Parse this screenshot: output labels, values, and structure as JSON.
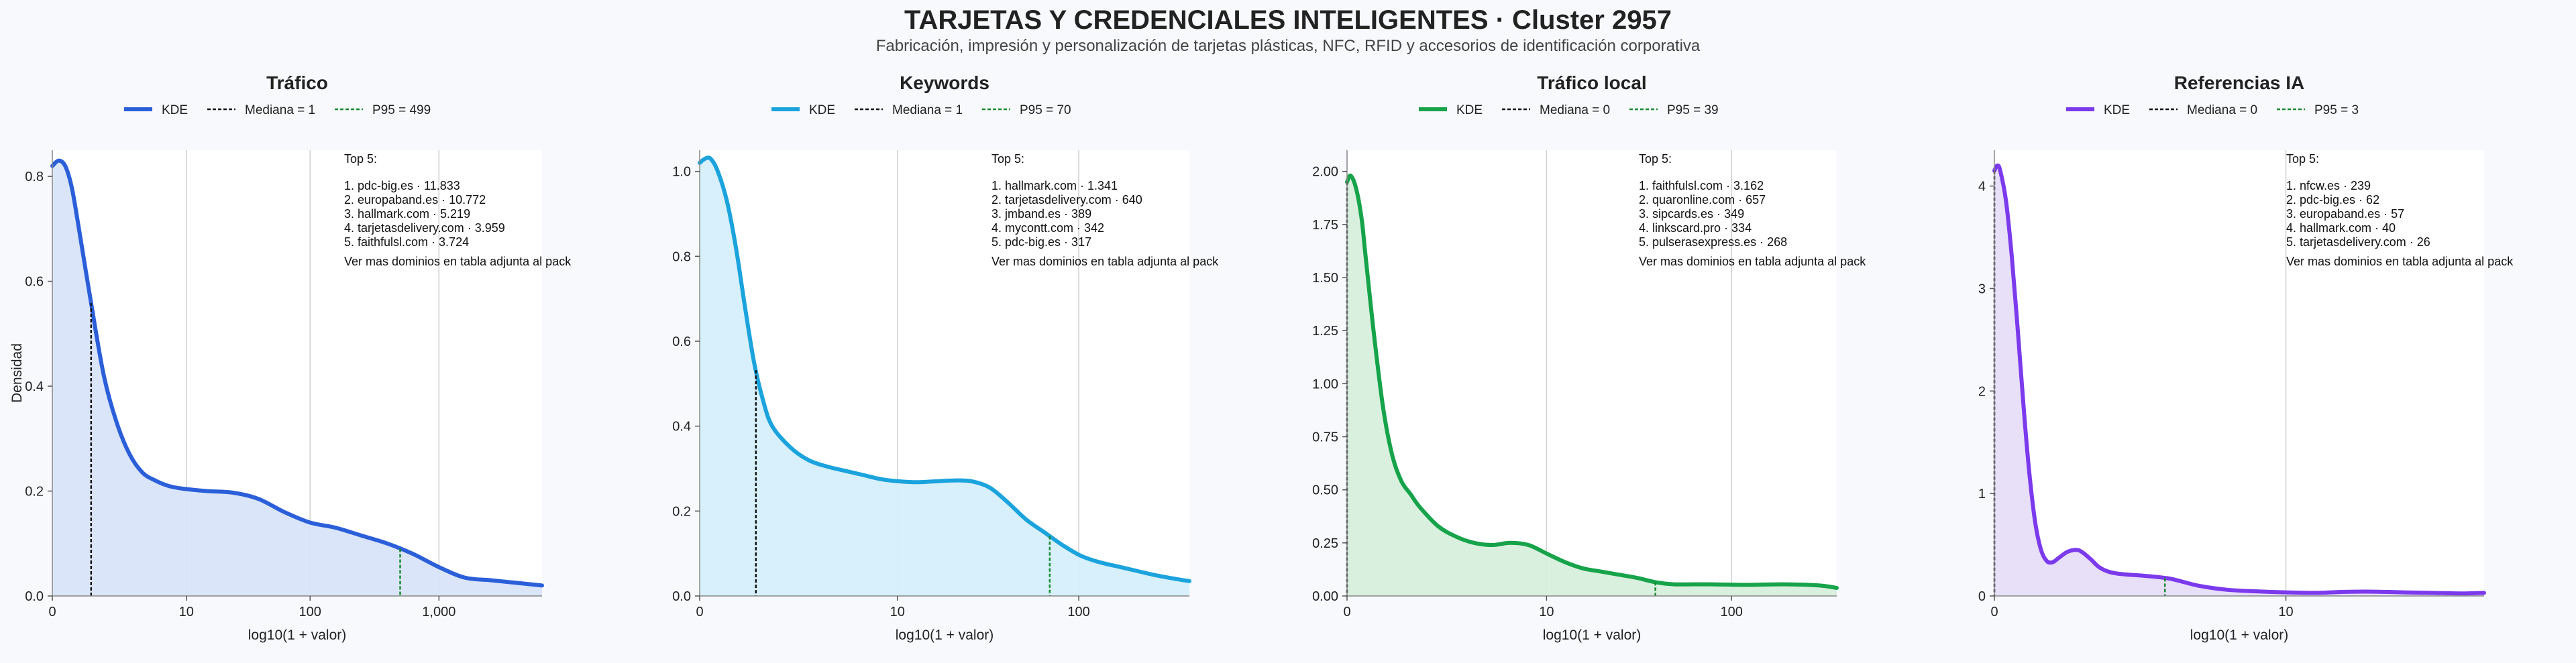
{
  "header": {
    "title": "TARJETAS Y CREDENCIALES INTELIGENTES · Cluster 2957",
    "subtitle": "Fabricación, impresión y personalización de tarjetas plásticas, NFC, RFID y accesorios de identificación corporativa"
  },
  "chart_data": [
    {
      "type": "area",
      "title": "Tráfico",
      "xlabel": "log10(1 + valor)",
      "ylabel": "Densidad",
      "color": "#2b5fd9",
      "fill": "#d7e2f8",
      "xlim": [
        0,
        3.8
      ],
      "ylim": [
        0,
        0.85
      ],
      "xticks": [
        {
          "v": 0,
          "label": "0"
        },
        {
          "v": 1.04,
          "label": "10"
        },
        {
          "v": 2.0,
          "label": "100"
        },
        {
          "v": 3.0,
          "label": "1,000"
        }
      ],
      "yticks": [
        {
          "v": 0.0,
          "label": "0.0"
        },
        {
          "v": 0.2,
          "label": "0.2"
        },
        {
          "v": 0.4,
          "label": "0.4"
        },
        {
          "v": 0.6,
          "label": "0.6"
        },
        {
          "v": 0.8,
          "label": "0.8"
        }
      ],
      "legend": {
        "kde": "KDE",
        "median": "Mediana = 1",
        "p95": "P95 = 499"
      },
      "median_x": 0.301,
      "p95_x": 2.699,
      "series": [
        {
          "name": "KDE",
          "x": [
            0,
            0.05,
            0.1,
            0.15,
            0.2,
            0.3,
            0.4,
            0.5,
            0.6,
            0.7,
            0.8,
            0.9,
            1.0,
            1.2,
            1.4,
            1.6,
            1.8,
            2.0,
            2.2,
            2.4,
            2.6,
            2.8,
            3.0,
            3.2,
            3.4,
            3.6,
            3.8
          ],
          "y": [
            0.82,
            0.83,
            0.82,
            0.78,
            0.71,
            0.56,
            0.42,
            0.33,
            0.27,
            0.235,
            0.22,
            0.21,
            0.205,
            0.2,
            0.197,
            0.185,
            0.16,
            0.14,
            0.13,
            0.115,
            0.1,
            0.08,
            0.055,
            0.035,
            0.03,
            0.025,
            0.02
          ]
        }
      ],
      "annotation": {
        "heading": "Top 5:",
        "items": [
          "1. pdc-big.es · 11.833",
          "2. europaband.es · 10.772",
          "3. hallmark.com · 5.219",
          "4. tarjetasdelivery.com · 3.959",
          "5. faithfulsl.com · 3.724"
        ],
        "footer": "Ver mas dominios en tabla adjunta al pack"
      }
    },
    {
      "type": "area",
      "title": "Keywords",
      "xlabel": "log10(1 + valor)",
      "ylabel": "",
      "color": "#1ba3dd",
      "fill": "#d3eefb",
      "xlim": [
        0,
        2.7
      ],
      "ylim": [
        0,
        1.05
      ],
      "xticks": [
        {
          "v": 0,
          "label": "0"
        },
        {
          "v": 1.09,
          "label": "10"
        },
        {
          "v": 2.09,
          "label": "100"
        }
      ],
      "yticks": [
        {
          "v": 0.0,
          "label": "0.0"
        },
        {
          "v": 0.2,
          "label": "0.2"
        },
        {
          "v": 0.4,
          "label": "0.4"
        },
        {
          "v": 0.6,
          "label": "0.6"
        },
        {
          "v": 0.8,
          "label": "0.8"
        },
        {
          "v": 1.0,
          "label": "1.0"
        }
      ],
      "legend": {
        "kde": "KDE",
        "median": "Mediana = 1",
        "p95": "P95 = 70"
      },
      "median_x": 0.31,
      "p95_x": 1.93,
      "series": [
        {
          "name": "KDE",
          "x": [
            0,
            0.03,
            0.06,
            0.1,
            0.15,
            0.2,
            0.25,
            0.3,
            0.35,
            0.4,
            0.5,
            0.6,
            0.7,
            0.8,
            0.9,
            1.0,
            1.1,
            1.2,
            1.3,
            1.4,
            1.5,
            1.6,
            1.7,
            1.8,
            1.9,
            2.0,
            2.1,
            2.2,
            2.3,
            2.4,
            2.5,
            2.6,
            2.7
          ],
          "y": [
            1.02,
            1.03,
            1.03,
            1.0,
            0.93,
            0.82,
            0.68,
            0.55,
            0.46,
            0.4,
            0.35,
            0.32,
            0.305,
            0.295,
            0.285,
            0.275,
            0.27,
            0.268,
            0.27,
            0.272,
            0.27,
            0.255,
            0.22,
            0.18,
            0.15,
            0.12,
            0.095,
            0.08,
            0.07,
            0.06,
            0.05,
            0.042,
            0.035
          ]
        }
      ],
      "annotation": {
        "heading": "Top 5:",
        "items": [
          "1. hallmark.com · 1.341",
          "2. tarjetasdelivery.com · 640",
          "3. jmband.es · 389",
          "4. mycontt.com · 342",
          "5. pdc-big.es · 317"
        ],
        "footer": "Ver mas dominios en tabla adjunta al pack"
      }
    },
    {
      "type": "area",
      "title": "Tráfico local",
      "xlabel": "log10(1 + valor)",
      "ylabel": "",
      "color": "#16a34a",
      "fill": "#d5eedc",
      "xlim": [
        0,
        2.7
      ],
      "ylim": [
        0,
        2.1
      ],
      "xticks": [
        {
          "v": 0,
          "label": "0"
        },
        {
          "v": 1.1,
          "label": "10"
        },
        {
          "v": 2.12,
          "label": "100"
        }
      ],
      "yticks": [
        {
          "v": 0.0,
          "label": "0.00"
        },
        {
          "v": 0.25,
          "label": "0.25"
        },
        {
          "v": 0.5,
          "label": "0.50"
        },
        {
          "v": 0.75,
          "label": "0.75"
        },
        {
          "v": 1.0,
          "label": "1.00"
        },
        {
          "v": 1.25,
          "label": "1.25"
        },
        {
          "v": 1.5,
          "label": "1.50"
        },
        {
          "v": 1.75,
          "label": "1.75"
        },
        {
          "v": 2.0,
          "label": "2.00"
        }
      ],
      "legend": {
        "kde": "KDE",
        "median": "Mediana = 0",
        "p95": "P95 = 39"
      },
      "median_x": 0,
      "p95_x": 1.7,
      "series": [
        {
          "name": "KDE",
          "x": [
            0,
            0.02,
            0.05,
            0.08,
            0.1,
            0.15,
            0.2,
            0.25,
            0.3,
            0.35,
            0.4,
            0.5,
            0.6,
            0.7,
            0.8,
            0.9,
            1.0,
            1.1,
            1.2,
            1.3,
            1.4,
            1.5,
            1.6,
            1.7,
            1.8,
            2.0,
            2.2,
            2.4,
            2.6,
            2.7
          ],
          "y": [
            1.95,
            1.98,
            1.92,
            1.78,
            1.62,
            1.22,
            0.88,
            0.66,
            0.54,
            0.48,
            0.42,
            0.33,
            0.28,
            0.25,
            0.24,
            0.25,
            0.24,
            0.2,
            0.16,
            0.13,
            0.115,
            0.1,
            0.085,
            0.065,
            0.055,
            0.055,
            0.052,
            0.055,
            0.05,
            0.038
          ]
        }
      ],
      "annotation": {
        "heading": "Top 5:",
        "items": [
          "1. faithfulsl.com · 3.162",
          "2. quaronline.com · 657",
          "3. sipcards.es · 349",
          "4. linkscard.pro · 334",
          "5. pulserasexpress.es · 268"
        ],
        "footer": "Ver mas dominios en tabla adjunta al pack"
      }
    },
    {
      "type": "area",
      "title": "Referencias IA",
      "xlabel": "log10(1 + valor)",
      "ylabel": "",
      "color": "#7c3aed",
      "fill": "#e6dcf7",
      "xlim": [
        0,
        1.68
      ],
      "ylim": [
        0,
        4.35
      ],
      "xticks": [
        {
          "v": 0,
          "label": "0"
        },
        {
          "v": 1.0,
          "label": "10"
        }
      ],
      "yticks": [
        {
          "v": 0,
          "label": "0"
        },
        {
          "v": 1,
          "label": "1"
        },
        {
          "v": 2,
          "label": "2"
        },
        {
          "v": 3,
          "label": "3"
        },
        {
          "v": 4,
          "label": "4"
        }
      ],
      "legend": {
        "kde": "KDE",
        "median": "Mediana = 0",
        "p95": "P95 = 3"
      },
      "median_x": 0,
      "p95_x": 0.585,
      "series": [
        {
          "name": "KDE",
          "x": [
            0,
            0.01,
            0.02,
            0.04,
            0.06,
            0.08,
            0.1,
            0.12,
            0.14,
            0.16,
            0.18,
            0.2,
            0.22,
            0.25,
            0.28,
            0.3,
            0.33,
            0.36,
            0.4,
            0.45,
            0.5,
            0.6,
            0.7,
            0.8,
            0.9,
            1.0,
            1.1,
            1.2,
            1.3,
            1.4,
            1.5,
            1.6,
            1.68
          ],
          "y": [
            4.15,
            4.2,
            4.15,
            3.85,
            3.3,
            2.6,
            1.85,
            1.2,
            0.72,
            0.45,
            0.34,
            0.33,
            0.37,
            0.43,
            0.45,
            0.43,
            0.36,
            0.28,
            0.23,
            0.21,
            0.2,
            0.17,
            0.1,
            0.06,
            0.045,
            0.035,
            0.03,
            0.04,
            0.042,
            0.035,
            0.03,
            0.025,
            0.03
          ]
        }
      ],
      "annotation": {
        "heading": "Top 5:",
        "items": [
          "1. nfcw.es · 239",
          "2. pdc-big.es · 62",
          "3. europaband.es · 57",
          "4. hallmark.com · 40",
          "5. tarjetasdelivery.com · 26"
        ],
        "footer": "Ver mas dominios en tabla adjunta al pack"
      }
    }
  ]
}
